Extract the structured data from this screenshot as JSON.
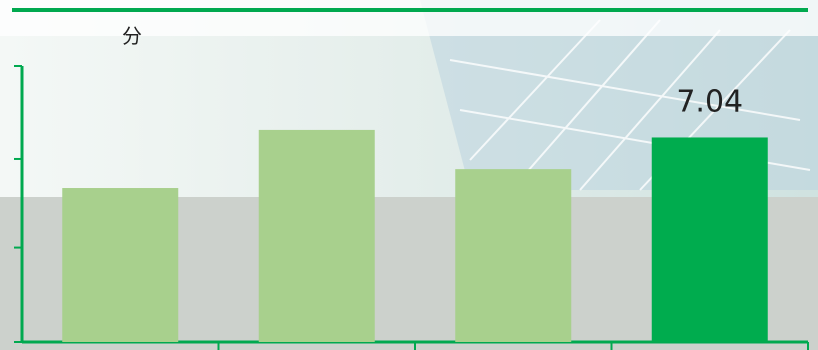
{
  "colors": {
    "accent": "#00a94f",
    "bar_normal": "#a8d08d",
    "bar_highlight": "#00ac4e",
    "axis": "#00a94f"
  },
  "chart_data": {
    "type": "bar",
    "title": "",
    "unit_label": "分",
    "categories": [
      "",
      "",
      "",
      ""
    ],
    "values": [
      5.3,
      7.3,
      5.95,
      7.04
    ],
    "highlight_index": 3,
    "data_labels": [
      "",
      "",
      "",
      "7.04"
    ],
    "ylim": [
      0,
      9.5
    ],
    "y_ticks": [
      0,
      3.25,
      6.3,
      9.5
    ],
    "legend": "none",
    "grid": false
  }
}
